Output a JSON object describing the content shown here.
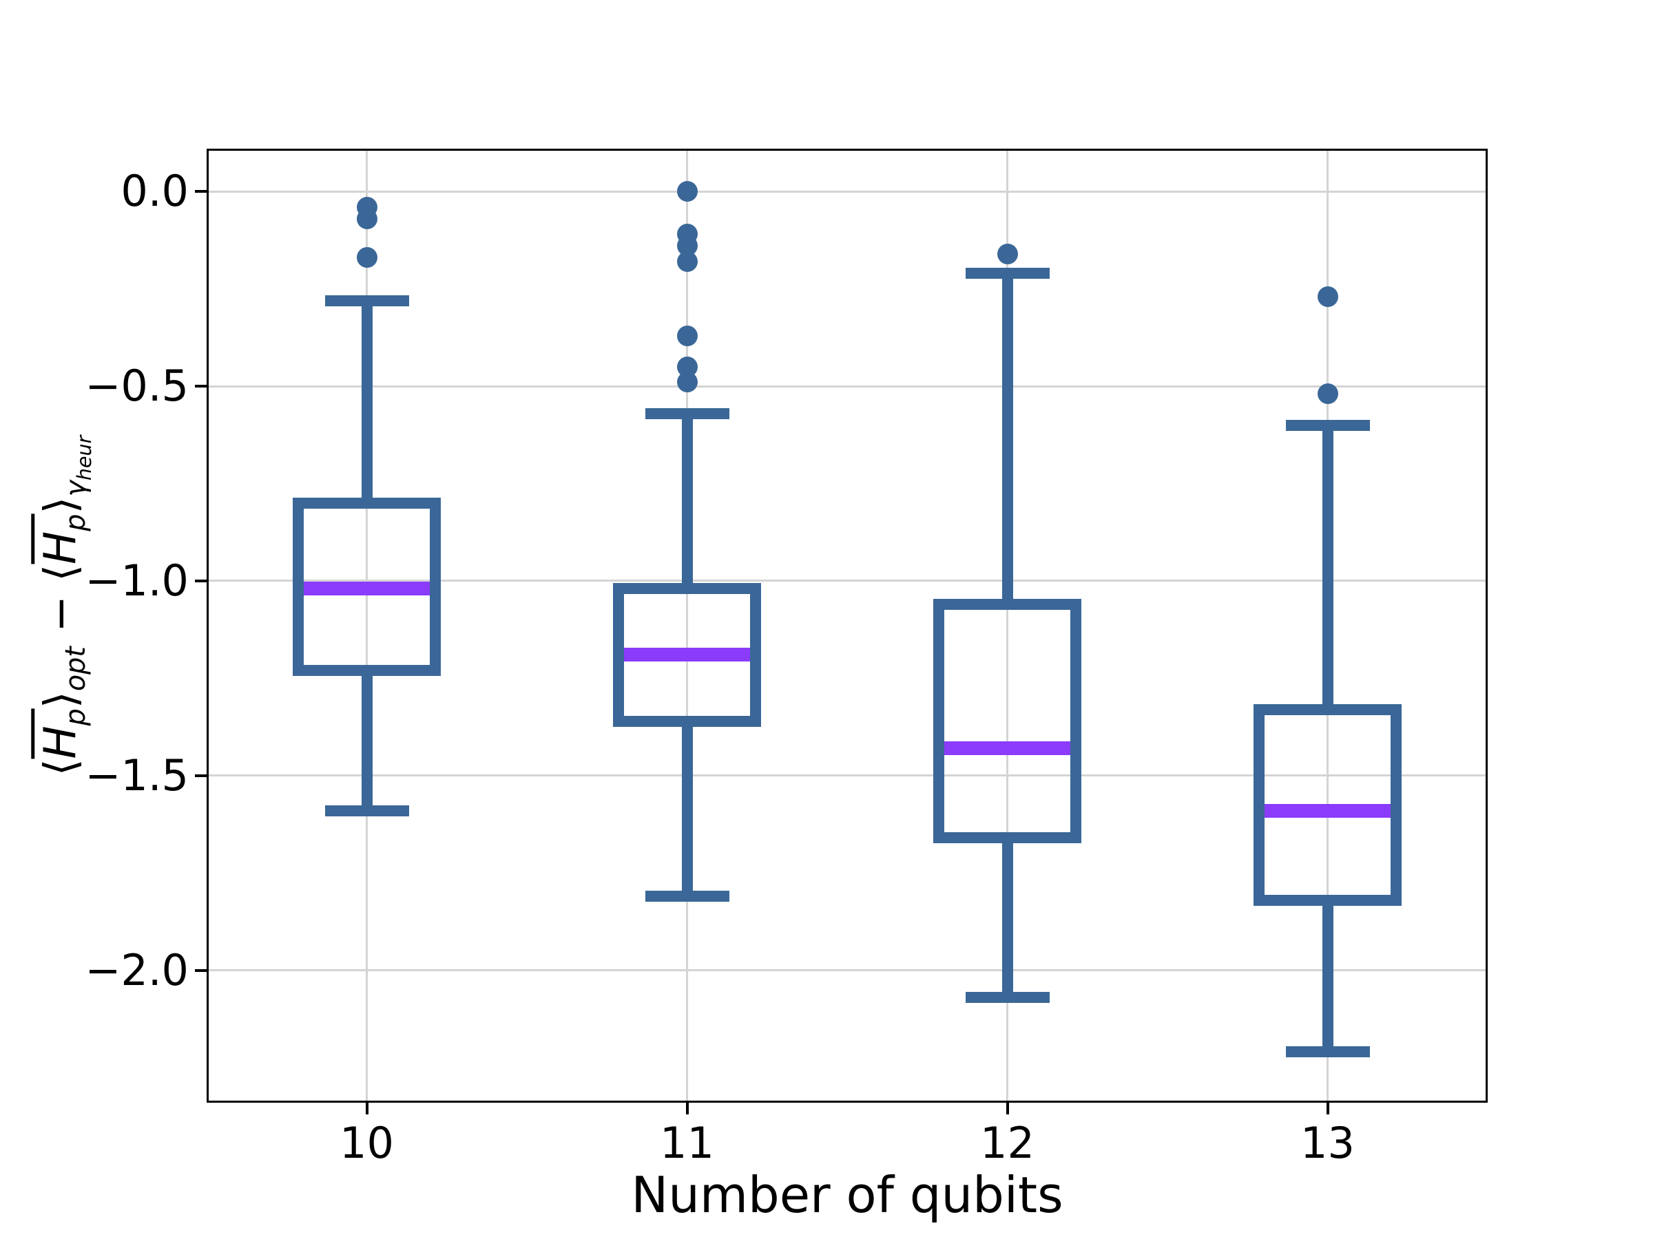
{
  "chart_data": {
    "type": "boxplot",
    "xlabel": "Number of qubits",
    "ylabel_plain": "⟨H̄p⟩opt − ⟨H̄p⟩γheur",
    "categories": [
      "10",
      "11",
      "12",
      "13"
    ],
    "yticks": [
      0.0,
      -0.5,
      -1.0,
      -1.5,
      -2.0
    ],
    "ytick_labels": [
      "0.0",
      "−0.5",
      "−1.0",
      "−1.5",
      "−2.0"
    ],
    "ylim": [
      -2.34,
      0.11
    ],
    "grid": true,
    "legend": "none",
    "boxes": [
      {
        "category": "10",
        "whisker_low": -1.59,
        "q1": -1.23,
        "median": -1.02,
        "q3": -0.8,
        "whisker_high": -0.28,
        "outliers": [
          -0.04,
          -0.07,
          -0.17
        ]
      },
      {
        "category": "11",
        "whisker_low": -1.81,
        "q1": -1.36,
        "median": -1.19,
        "q3": -1.02,
        "whisker_high": -0.57,
        "outliers": [
          0.0,
          -0.11,
          -0.14,
          -0.18,
          -0.37,
          -0.45,
          -0.49
        ]
      },
      {
        "category": "12",
        "whisker_low": -2.07,
        "q1": -1.66,
        "median": -1.43,
        "q3": -1.06,
        "whisker_high": -0.21,
        "outliers": [
          -0.16
        ]
      },
      {
        "category": "13",
        "whisker_low": -2.21,
        "q1": -1.82,
        "median": -1.59,
        "q3": -1.33,
        "whisker_high": -0.6,
        "outliers": [
          -0.27,
          -0.52
        ]
      }
    ],
    "colors": {
      "box": "#3a6797",
      "median": "#8b3bfa",
      "grid": "#d4d4d4",
      "spine": "#000000",
      "text": "#000000",
      "background": "#ffffff"
    }
  },
  "ylabel": {
    "open1": "⟨",
    "h1": "H",
    "p1": "p",
    "close1": "⟩",
    "sub_opt": "opt",
    "minus": " − ",
    "open2": "⟨",
    "h2": "H",
    "p2": "p",
    "close2": "⟩",
    "gamma": "γ",
    "heur": "heur"
  }
}
